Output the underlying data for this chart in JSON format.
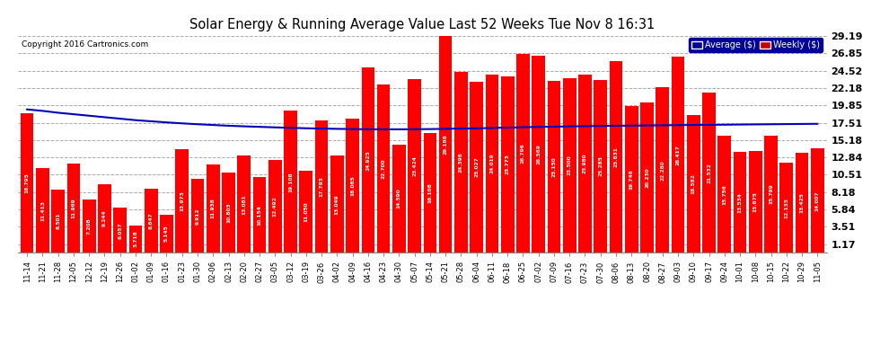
{
  "title": "Solar Energy & Running Average Value Last 52 Weeks Tue Nov 8 16:31",
  "copyright": "Copyright 2016 Cartronics.com",
  "bar_color": "#ff0000",
  "avg_line_color": "#0000bb",
  "background_color": "#ffffff",
  "plot_bg_color": "#ffffff",
  "grid_color": "#aaaaaa",
  "yticks": [
    1.17,
    3.51,
    5.84,
    8.18,
    10.51,
    12.84,
    15.18,
    17.51,
    19.85,
    22.18,
    24.52,
    26.85,
    29.19
  ],
  "categories": [
    "11-14",
    "11-21",
    "11-28",
    "12-05",
    "12-12",
    "12-19",
    "12-26",
    "01-02",
    "01-09",
    "01-16",
    "01-23",
    "01-30",
    "02-06",
    "02-13",
    "02-20",
    "02-27",
    "03-05",
    "03-12",
    "03-19",
    "03-26",
    "04-02",
    "04-09",
    "04-16",
    "04-23",
    "04-30",
    "05-07",
    "05-14",
    "05-21",
    "05-28",
    "06-04",
    "06-11",
    "06-18",
    "06-25",
    "07-02",
    "07-09",
    "07-16",
    "07-23",
    "07-30",
    "08-06",
    "08-13",
    "08-20",
    "08-27",
    "09-03",
    "09-10",
    "09-17",
    "09-24",
    "10-01",
    "10-08",
    "10-15",
    "10-22",
    "10-29",
    "11-05"
  ],
  "weekly_values": [
    18.795,
    11.413,
    8.501,
    11.969,
    7.208,
    9.244,
    6.057,
    3.718,
    8.647,
    5.145,
    13.973,
    9.912,
    11.938,
    10.803,
    13.081,
    10.154,
    12.492,
    19.108,
    11.05,
    17.793,
    13.049,
    18.065,
    24.925,
    22.7,
    14.59,
    23.424,
    16.108,
    29.188,
    24.396,
    23.027,
    24.019,
    23.773,
    26.796,
    26.569,
    23.15,
    23.5,
    23.98,
    23.285,
    25.831,
    19.746,
    20.23,
    22.28,
    26.417,
    18.582,
    21.532,
    15.756,
    13.534,
    13.675,
    15.799,
    12.135,
    13.425,
    14.007
  ],
  "avg_values": [
    19.3,
    19.1,
    18.85,
    18.65,
    18.45,
    18.25,
    18.05,
    17.85,
    17.7,
    17.55,
    17.42,
    17.3,
    17.2,
    17.1,
    17.02,
    16.95,
    16.88,
    16.82,
    16.76,
    16.72,
    16.68,
    16.65,
    16.63,
    16.62,
    16.62,
    16.63,
    16.65,
    16.68,
    16.72,
    16.75,
    16.8,
    16.85,
    16.9,
    16.94,
    16.98,
    17.01,
    17.04,
    17.07,
    17.1,
    17.12,
    17.14,
    17.16,
    17.18,
    17.2,
    17.22,
    17.24,
    17.26,
    17.28,
    17.3,
    17.32,
    17.34,
    17.36
  ],
  "legend_avg_bg": "#000099",
  "legend_weekly_bg": "#cc0000"
}
